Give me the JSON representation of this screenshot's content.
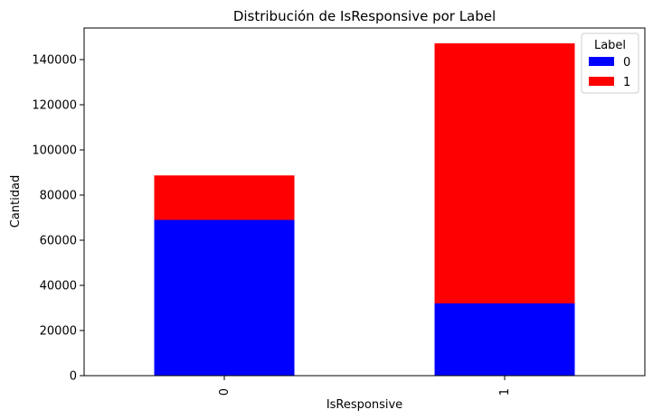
{
  "chart_data": {
    "type": "bar",
    "stacked": true,
    "title": "Distribución de IsResponsive por Label",
    "xlabel": "IsResponsive",
    "ylabel": "Cantidad",
    "categories": [
      "0",
      "1"
    ],
    "series": [
      {
        "name": "0",
        "color": "#0000ff",
        "values": [
          69000,
          32000
        ]
      },
      {
        "name": "1",
        "color": "#ff0000",
        "values": [
          19700,
          115200
        ]
      }
    ],
    "ylim": [
      0,
      154000
    ],
    "yticks": [
      0,
      20000,
      40000,
      60000,
      80000,
      100000,
      120000,
      140000
    ],
    "legend": {
      "title": "Label",
      "position": "top-right"
    },
    "grid": false
  }
}
